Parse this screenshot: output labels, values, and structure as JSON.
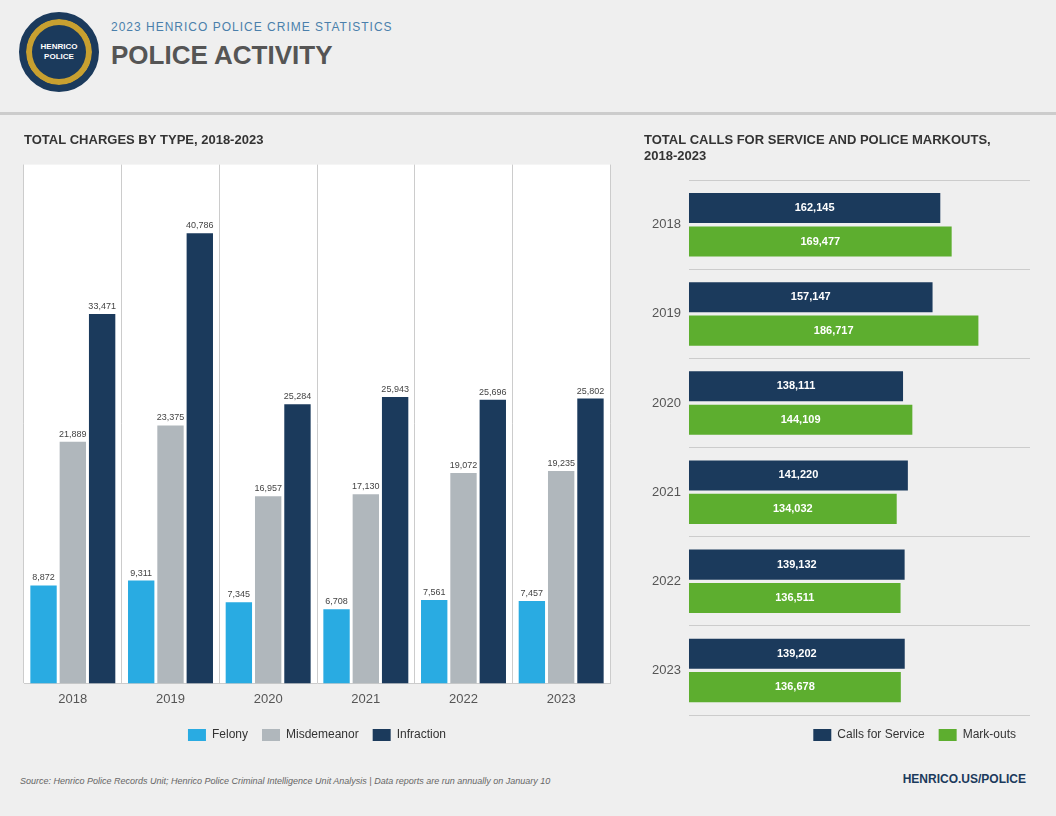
{
  "title": "POLICE ACTIVITY",
  "subtitle": "2023 HENRICO POLICE CRIME STATISTICS",
  "annotations": [
    "HENRICO",
    "POLICE",
    "Source: Henrico Police Records Unit; Henrico Police Criminal Intelligence Unit Analysis  |  Data reports are run annually on January 10",
    "HENRICO.US/POLICE"
  ],
  "chart_data": [
    {
      "type": "bar",
      "title": "TOTAL CHARGES BY TYPE, 2018-2023",
      "categories": [
        "2018",
        "2019",
        "2020",
        "2021",
        "2022",
        "2023"
      ],
      "series": [
        {
          "name": "Felony",
          "color": "#29ABE2",
          "values": [
            8872,
            9311,
            7345,
            6708,
            7561,
            7457
          ],
          "value_labels": [
            "8,872",
            "9,311",
            "7,345",
            "6,708",
            "7,561",
            "7,457"
          ]
        },
        {
          "name": "Misdemeanor",
          "color": "#B0B7BC",
          "values": [
            21889,
            23375,
            16957,
            17130,
            19072,
            19235
          ],
          "value_labels": [
            "21,889",
            "23,375",
            "16,957",
            "17,130",
            "19,072",
            "19,235"
          ]
        },
        {
          "name": "Infraction",
          "color": "#1B3A5C",
          "values": [
            33471,
            40786,
            25284,
            25943,
            25696,
            25802
          ],
          "value_labels": [
            "33,471",
            "40,786",
            "25,284",
            "25,943",
            "25,696",
            "25,802"
          ]
        }
      ],
      "ylim": [
        0,
        47000
      ],
      "tick_labels": "x",
      "grid": true,
      "legend": "bottom",
      "data_labels": true
    },
    {
      "type": "bar",
      "orientation": "horizontal",
      "title": "TOTAL CALLS FOR SERVICE AND POLICE MARKOUTS,\n2018-2023",
      "categories": [
        "2023",
        "2022",
        "2021",
        "2020",
        "2019",
        "2018"
      ],
      "series": [
        {
          "name": "Calls for Service",
          "color": "#1B3A5C",
          "values": [
            139202,
            139132,
            141220,
            138111,
            157147,
            162145
          ],
          "value_labels": [
            "139,202",
            "139,132",
            "141,220",
            "138,111",
            "157,147",
            "162,145"
          ]
        },
        {
          "name": "Mark-outs",
          "color": "#5DAE2F",
          "values": [
            136678,
            136511,
            134032,
            144109,
            186717,
            169477
          ],
          "value_labels": [
            "136,678",
            "136,511",
            "134,032",
            "144,109",
            "186,717",
            "169,477"
          ]
        }
      ],
      "xlim": [
        0,
        220000
      ],
      "tick_labels": "y",
      "grid": true,
      "legend": "bottom",
      "data_labels": true
    }
  ]
}
